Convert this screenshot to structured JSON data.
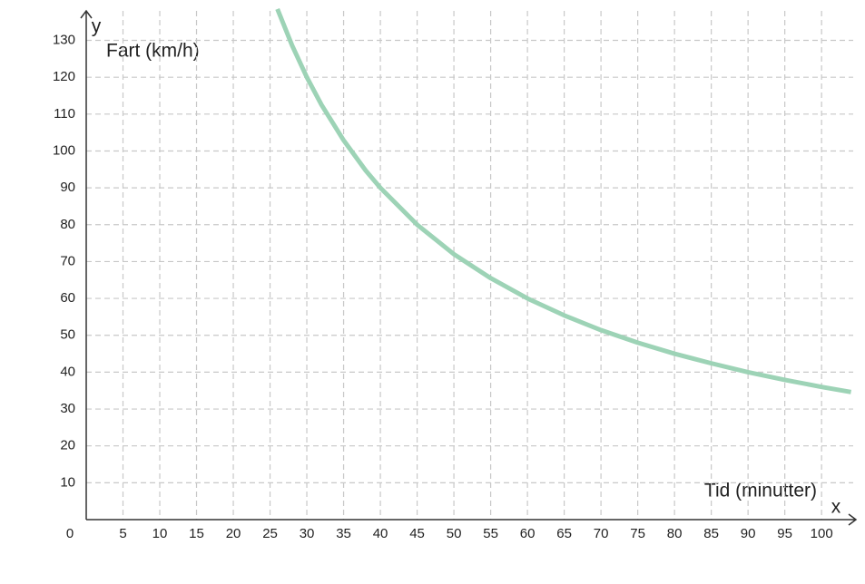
{
  "chart_data": {
    "type": "line",
    "x_label": "Tid (minutter)",
    "y_label": "Fart (km/h)",
    "x_axis_letter": "x",
    "y_axis_letter": "y",
    "origin_label": "0",
    "xlim": [
      0,
      104.3
    ],
    "ylim": [
      0,
      138
    ],
    "xticks": [
      5,
      10,
      15,
      20,
      25,
      30,
      35,
      40,
      45,
      50,
      55,
      60,
      65,
      70,
      75,
      80,
      85,
      90,
      95,
      100
    ],
    "yticks": [
      10,
      20,
      30,
      40,
      50,
      60,
      70,
      80,
      90,
      100,
      110,
      120,
      130
    ],
    "grid": true,
    "series": [
      {
        "color": "#9dd3b6",
        "x": [
          26,
          28,
          30,
          32,
          35,
          38,
          40,
          45,
          50,
          55,
          60,
          65,
          70,
          75,
          80,
          85,
          90,
          95,
          100,
          104
        ],
        "values": [
          138.5,
          128.6,
          120,
          112.5,
          102.9,
          94.7,
          90,
          80,
          72,
          65.5,
          60,
          55.4,
          51.4,
          48,
          45,
          42.4,
          40,
          37.9,
          36,
          34.6
        ]
      }
    ]
  }
}
